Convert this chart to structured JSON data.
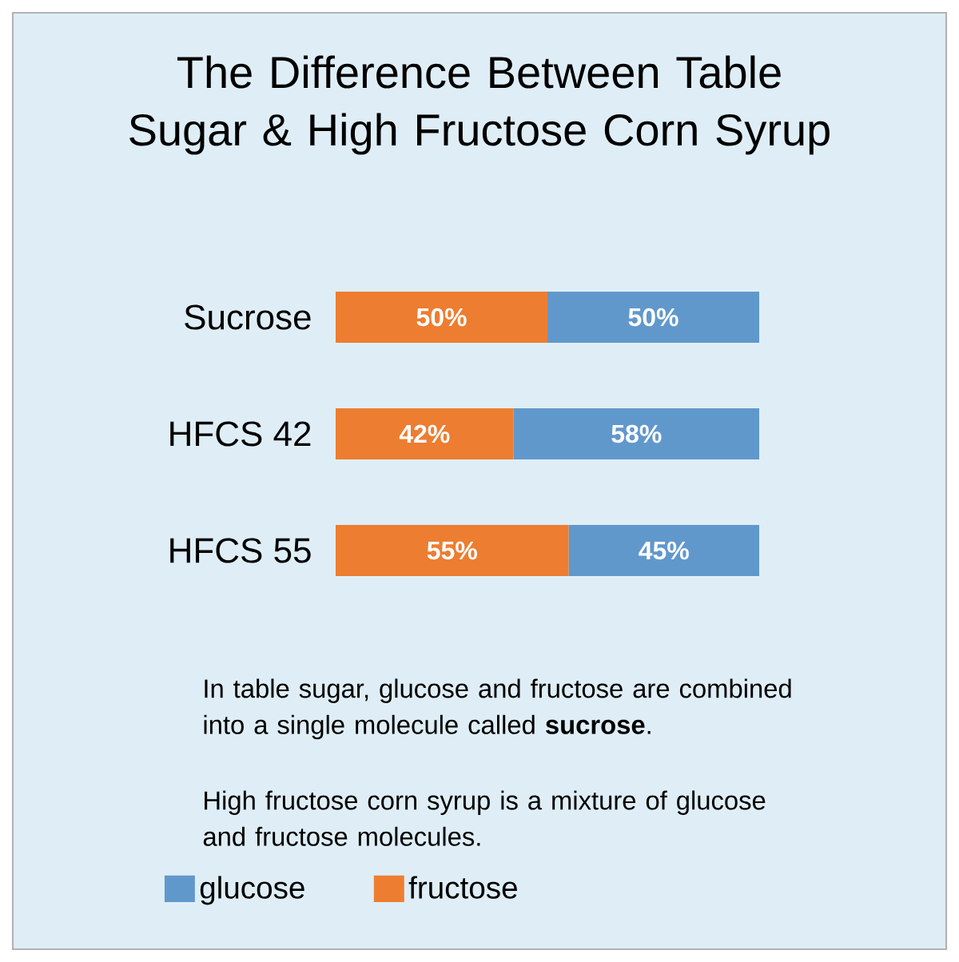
{
  "chart_data": {
    "type": "bar",
    "orientation": "horizontal",
    "stacked": true,
    "title": "The Difference Between Table Sugar & High Fructose Corn Syrup",
    "categories": [
      "Sucrose",
      "HFCS 42",
      "HFCS 55"
    ],
    "series": [
      {
        "name": "fructose",
        "color": "#ed7d31",
        "values": [
          50,
          42,
          55
        ],
        "value_labels": [
          "50%",
          "42%",
          "55%"
        ]
      },
      {
        "name": "glucose",
        "color": "#6198cc",
        "values": [
          50,
          58,
          45
        ],
        "value_labels": [
          "50%",
          "58%",
          "45%"
        ]
      }
    ],
    "annotations": [
      "In table sugar, glucose and fructose are combined into a single molecule called **sucrose**.",
      "High fructose corn syrup is a mixture of glucose and fructose molecules."
    ],
    "legend": "bottom left"
  }
}
